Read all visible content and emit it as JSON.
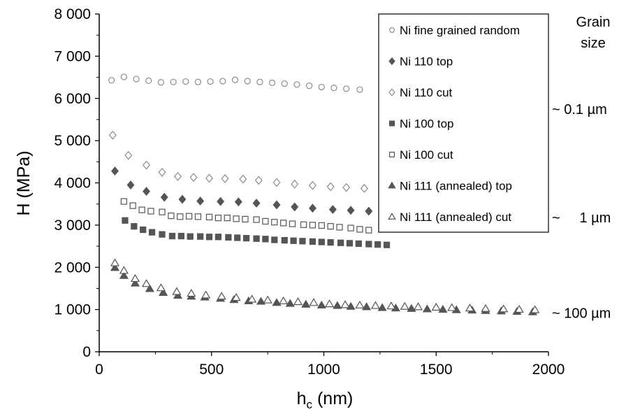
{
  "chart_data": {
    "type": "scatter",
    "xlabel": "h",
    "xlabel_sub": "c",
    "xlabel_unit": " (nm)",
    "ylabel": "H (MPa)",
    "xlim": [
      0,
      2000
    ],
    "ylim": [
      0,
      8000
    ],
    "x_ticks": [
      "0",
      "500",
      "1000",
      "1500",
      "2000"
    ],
    "y_ticks": [
      "0",
      "1 000",
      "2 000",
      "3 000",
      "4 000",
      "5 000",
      "6 000",
      "7 000",
      "8 000"
    ],
    "grid": false,
    "legend_position": "top-right",
    "side_title": [
      "Grain",
      "size"
    ],
    "side_labels": [
      {
        "text": "~ 0.1 µm",
        "y": 5750
      },
      {
        "text": "~     1 µm",
        "y": 3180
      },
      {
        "text": "~ 100 µm",
        "y": 920
      }
    ],
    "series": [
      {
        "name": "Ni fine grained random",
        "marker": "circle",
        "filled": false,
        "color": "#8c8c8c",
        "x": [
          55,
          110,
          165,
          220,
          275,
          330,
          385,
          440,
          495,
          550,
          605,
          660,
          715,
          770,
          825,
          880,
          935,
          990,
          1045,
          1100,
          1160
        ],
        "y": [
          6430,
          6510,
          6460,
          6420,
          6380,
          6390,
          6400,
          6390,
          6400,
          6410,
          6440,
          6410,
          6390,
          6370,
          6350,
          6330,
          6300,
          6270,
          6250,
          6230,
          6210
        ]
      },
      {
        "name": "Ni 110 top",
        "marker": "diamond",
        "filled": true,
        "color": "#555555",
        "x": [
          70,
          140,
          210,
          290,
          370,
          450,
          540,
          620,
          700,
          790,
          870,
          950,
          1040,
          1120,
          1200
        ],
        "y": [
          4280,
          3950,
          3800,
          3660,
          3610,
          3570,
          3560,
          3550,
          3520,
          3480,
          3430,
          3400,
          3370,
          3350,
          3330
        ]
      },
      {
        "name": "Ni 110 cut",
        "marker": "diamond",
        "filled": false,
        "color": "#8c8c8c",
        "x": [
          60,
          130,
          210,
          280,
          350,
          420,
          490,
          560,
          640,
          710,
          790,
          870,
          950,
          1030,
          1100,
          1180
        ],
        "y": [
          5130,
          4650,
          4420,
          4250,
          4150,
          4130,
          4110,
          4100,
          4090,
          4060,
          4010,
          3970,
          3940,
          3910,
          3890,
          3870
        ]
      },
      {
        "name": "Ni 100 top",
        "marker": "square",
        "filled": true,
        "color": "#555555",
        "x": [
          115,
          155,
          195,
          235,
          280,
          325,
          365,
          405,
          450,
          490,
          530,
          575,
          615,
          655,
          700,
          740,
          780,
          825,
          865,
          905,
          950,
          990,
          1030,
          1075,
          1115,
          1155,
          1200,
          1240,
          1280
        ],
        "y": [
          3110,
          2970,
          2890,
          2830,
          2780,
          2740,
          2740,
          2730,
          2730,
          2720,
          2720,
          2710,
          2700,
          2690,
          2680,
          2670,
          2650,
          2640,
          2630,
          2620,
          2610,
          2600,
          2590,
          2580,
          2570,
          2560,
          2550,
          2540,
          2530
        ]
      },
      {
        "name": "Ni 100 cut",
        "marker": "square",
        "filled": false,
        "color": "#555555",
        "x": [
          110,
          150,
          190,
          230,
          280,
          320,
          360,
          400,
          440,
          490,
          530,
          570,
          610,
          650,
          700,
          740,
          780,
          820,
          860,
          910,
          950,
          990,
          1030,
          1070,
          1120,
          1160,
          1200
        ],
        "y": [
          3560,
          3460,
          3360,
          3330,
          3310,
          3220,
          3200,
          3210,
          3200,
          3190,
          3170,
          3170,
          3150,
          3140,
          3130,
          3090,
          3070,
          3050,
          3030,
          3010,
          3000,
          2990,
          2970,
          2950,
          2930,
          2900,
          2880
        ]
      },
      {
        "name": "Ni 111 (annealed) top",
        "marker": "triangle",
        "filled": true,
        "color": "#555555",
        "x": [
          70,
          110,
          160,
          225,
          285,
          350,
          410,
          470,
          540,
          600,
          665,
          720,
          790,
          850,
          920,
          990,
          1060,
          1120,
          1190,
          1260,
          1320,
          1390,
          1460,
          1530,
          1590,
          1660,
          1720,
          1790,
          1860,
          1930
        ],
        "y": [
          1990,
          1800,
          1620,
          1490,
          1400,
          1330,
          1310,
          1290,
          1260,
          1230,
          1200,
          1190,
          1160,
          1140,
          1120,
          1100,
          1090,
          1070,
          1060,
          1040,
          1030,
          1020,
          1010,
          1000,
          990,
          980,
          970,
          960,
          950,
          940
        ]
      },
      {
        "name": "Ni 111 (annealed) cut",
        "marker": "triangle",
        "filled": false,
        "color": "#555555",
        "x": [
          70,
          110,
          160,
          210,
          275,
          345,
          410,
          475,
          545,
          610,
          680,
          750,
          820,
          885,
          955,
          1025,
          1095,
          1160,
          1230,
          1300,
          1360,
          1420,
          1500,
          1570,
          1650,
          1720,
          1800,
          1870,
          1940
        ],
        "y": [
          2100,
          1920,
          1730,
          1610,
          1510,
          1420,
          1380,
          1340,
          1310,
          1280,
          1240,
          1220,
          1200,
          1180,
          1160,
          1130,
          1110,
          1100,
          1090,
          1080,
          1070,
          1060,
          1050,
          1040,
          1030,
          1020,
          1010,
          1000,
          990
        ]
      }
    ]
  }
}
